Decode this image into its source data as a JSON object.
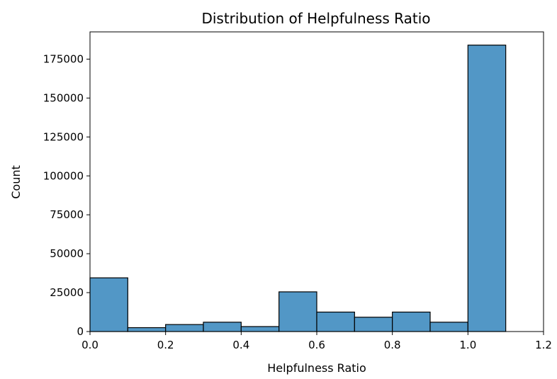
{
  "chart_data": {
    "type": "bar",
    "title": "Distribution of Helpfulness Ratio",
    "xlabel": "Helpfulness Ratio",
    "ylabel": "Count",
    "xlim": [
      0.0,
      1.2
    ],
    "ylim": [
      0,
      192500
    ],
    "x_ticks": [
      "0.0",
      "0.2",
      "0.4",
      "0.6",
      "0.8",
      "1.0",
      "1.2"
    ],
    "y_ticks": [
      "0",
      "25000",
      "50000",
      "75000",
      "100000",
      "125000",
      "150000",
      "175000"
    ],
    "bins": [
      {
        "start": 0.0,
        "end": 0.1,
        "value": 34500
      },
      {
        "start": 0.1,
        "end": 0.2,
        "value": 2500
      },
      {
        "start": 0.2,
        "end": 0.3,
        "value": 4500
      },
      {
        "start": 0.3,
        "end": 0.4,
        "value": 6000
      },
      {
        "start": 0.4,
        "end": 0.5,
        "value": 3200
      },
      {
        "start": 0.5,
        "end": 0.6,
        "value": 25500
      },
      {
        "start": 0.6,
        "end": 0.7,
        "value": 12500
      },
      {
        "start": 0.7,
        "end": 0.8,
        "value": 9200
      },
      {
        "start": 0.8,
        "end": 0.9,
        "value": 12500
      },
      {
        "start": 0.9,
        "end": 1.0,
        "value": 6000
      },
      {
        "start": 1.0,
        "end": 1.1,
        "value": 184000
      }
    ],
    "bar_color": "#5297c6",
    "edge_color": "#000000",
    "grid": false,
    "legend": "none"
  }
}
